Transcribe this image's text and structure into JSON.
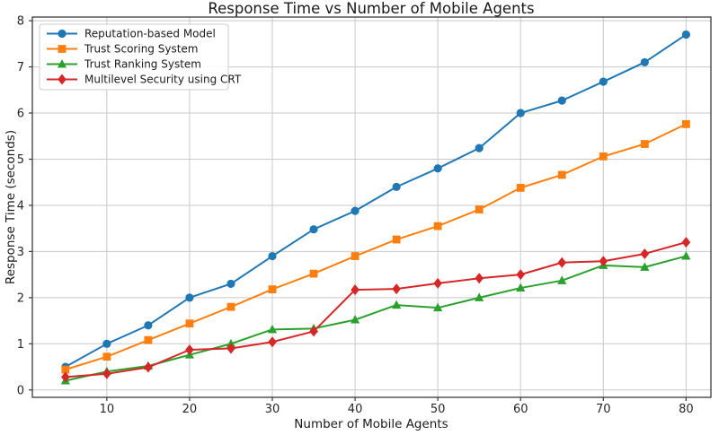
{
  "figure": {
    "background": "#ffffff"
  },
  "chart_data": {
    "type": "line",
    "title": "Response Time vs Number of Mobile Agents",
    "xlabel": "Number of Mobile Agents",
    "ylabel": "Response Time (seconds)",
    "x": [
      5,
      10,
      15,
      20,
      25,
      30,
      35,
      40,
      45,
      50,
      55,
      60,
      65,
      70,
      75,
      80
    ],
    "series": [
      {
        "name": "Reputation-based Model",
        "marker": "circle",
        "color": "#1f77b4",
        "values": [
          0.5,
          1.0,
          1.4,
          2.0,
          2.3,
          2.9,
          3.48,
          3.88,
          4.4,
          4.8,
          5.24,
          6.0,
          6.27,
          6.68,
          7.1,
          7.7
        ]
      },
      {
        "name": "Trust Scoring System",
        "marker": "square",
        "color": "#ff7f0e",
        "values": [
          0.44,
          0.72,
          1.08,
          1.44,
          1.8,
          2.18,
          2.52,
          2.9,
          3.26,
          3.55,
          3.91,
          4.38,
          4.66,
          5.06,
          5.33,
          5.76
        ]
      },
      {
        "name": "Trust Ranking System",
        "marker": "triangle",
        "color": "#2ca02c",
        "values": [
          0.2,
          0.4,
          0.52,
          0.76,
          1.0,
          1.31,
          1.33,
          1.52,
          1.84,
          1.78,
          2.0,
          2.21,
          2.37,
          2.7,
          2.66,
          2.9
        ]
      },
      {
        "name": "Multilevel Security using CRT",
        "marker": "diamond",
        "color": "#d62728",
        "values": [
          0.28,
          0.35,
          0.49,
          0.87,
          0.9,
          1.04,
          1.27,
          2.17,
          2.19,
          2.31,
          2.42,
          2.5,
          2.76,
          2.79,
          2.95,
          3.2
        ]
      }
    ],
    "xticks": [
      10,
      20,
      30,
      40,
      50,
      60,
      70,
      80
    ],
    "yticks": [
      0,
      1,
      2,
      3,
      4,
      5,
      6,
      7,
      8
    ],
    "xlim": [
      1,
      83
    ],
    "ylim": [
      -0.16,
      8.08
    ],
    "grid": true,
    "legend_position": "upper-left",
    "styles": {
      "grid_color": "#c9c9c9",
      "spine_color": "#3a3a3a",
      "tick_color": "#3a3a3a",
      "legend_border": "#cccccc",
      "legend_fill": "#ffffff"
    }
  }
}
